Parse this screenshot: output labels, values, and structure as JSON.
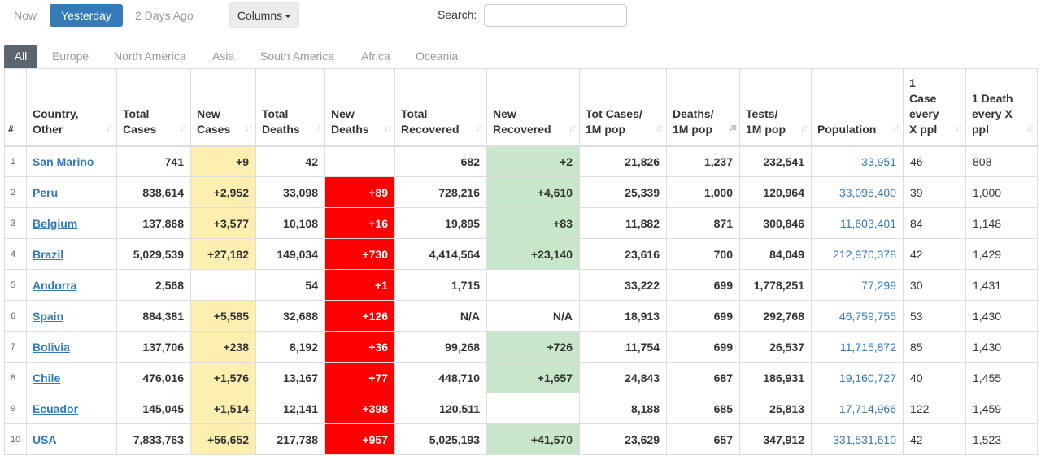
{
  "top_tabs": {
    "now": "Now",
    "yesterday": "Yesterday",
    "two_days": "2 Days Ago"
  },
  "columns_label": "Columns",
  "search": {
    "label": "Search:",
    "value": "",
    "placeholder": ""
  },
  "region_tabs": [
    "All",
    "Europe",
    "North America",
    "Asia",
    "South America",
    "Africa",
    "Oceania"
  ],
  "table": {
    "headers": [
      [
        "#"
      ],
      [
        "Country,",
        "Other"
      ],
      [
        "Total",
        "Cases"
      ],
      [
        "New",
        "Cases"
      ],
      [
        "Total",
        "Deaths"
      ],
      [
        "New",
        "Deaths"
      ],
      [
        "Total",
        "Recovered"
      ],
      [
        "New",
        "Recovered"
      ],
      [
        "Tot Cases/",
        "1M pop"
      ],
      [
        "Deaths/",
        "1M pop"
      ],
      [
        "Tests/",
        "1M pop"
      ],
      [
        "Population"
      ],
      [
        "1",
        "Case",
        "every",
        "X ppl"
      ],
      [
        "1 Death",
        "every X",
        "ppl"
      ]
    ],
    "rows": [
      [
        "1",
        "San Marino",
        "741",
        "+9",
        "42",
        "",
        "682",
        "+2",
        "21,826",
        "1,237",
        "232,541",
        "33,951",
        "46",
        "808"
      ],
      [
        "2",
        "Peru",
        "838,614",
        "+2,952",
        "33,098",
        "+89",
        "728,216",
        "+4,610",
        "25,339",
        "1,000",
        "120,964",
        "33,095,400",
        "39",
        "1,000"
      ],
      [
        "3",
        "Belgium",
        "137,868",
        "+3,577",
        "10,108",
        "+16",
        "19,895",
        "+83",
        "11,882",
        "871",
        "300,846",
        "11,603,401",
        "84",
        "1,148"
      ],
      [
        "4",
        "Brazil",
        "5,029,539",
        "+27,182",
        "149,034",
        "+730",
        "4,414,564",
        "+23,140",
        "23,616",
        "700",
        "84,049",
        "212,970,378",
        "42",
        "1,429"
      ],
      [
        "5",
        "Andorra",
        "2,568",
        "",
        "54",
        "+1",
        "1,715",
        "",
        "33,222",
        "699",
        "1,778,251",
        "77,299",
        "30",
        "1,431"
      ],
      [
        "6",
        "Spain",
        "884,381",
        "+5,585",
        "32,688",
        "+126",
        "N/A",
        "N/A",
        "18,913",
        "699",
        "292,768",
        "46,759,755",
        "53",
        "1,430"
      ],
      [
        "7",
        "Bolivia",
        "137,706",
        "+238",
        "8,192",
        "+36",
        "99,268",
        "+726",
        "11,754",
        "699",
        "26,537",
        "11,715,872",
        "85",
        "1,430"
      ],
      [
        "8",
        "Chile",
        "476,016",
        "+1,576",
        "13,167",
        "+77",
        "448,710",
        "+1,657",
        "24,843",
        "687",
        "186,931",
        "19,160,727",
        "40",
        "1,455"
      ],
      [
        "9",
        "Ecuador",
        "145,045",
        "+1,514",
        "12,141",
        "+398",
        "120,511",
        "",
        "8,188",
        "685",
        "25,813",
        "17,714,966",
        "122",
        "1,459"
      ],
      [
        "10",
        "USA",
        "7,833,763",
        "+56,652",
        "217,738",
        "+957",
        "5,025,193",
        "+41,570",
        "23,629",
        "657",
        "347,912",
        "331,531,610",
        "42",
        "1,523"
      ]
    ]
  },
  "colors": {
    "accent": "#337ab7",
    "new_cases_bg": "#fdefb0",
    "new_deaths_bg": "#ff0000",
    "new_recovered_bg": "#c8e6c9",
    "region_active_bg": "#5a6570"
  }
}
